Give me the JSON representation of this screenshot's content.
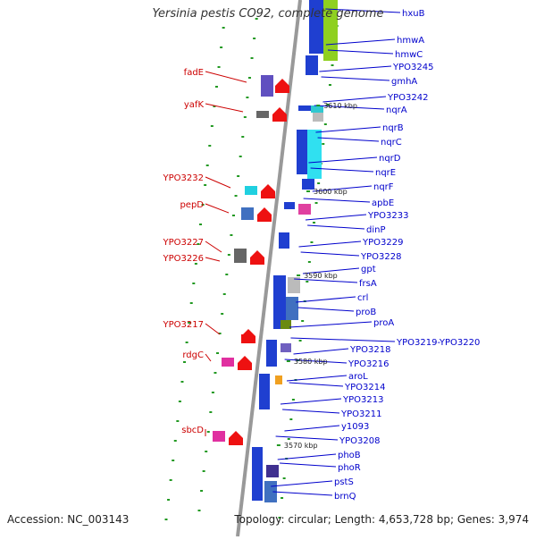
{
  "title": "Yersinia pestis CO92, complete genome",
  "footer": {
    "accession": "Accession: NC_003143",
    "topology": "Topology: circular; Length: 4,653,728 bp; Genes: 3,974"
  },
  "colors": {
    "backbone": "#888888",
    "forward_label": "#cc0000",
    "reverse_label": "#0000cc",
    "tick_label": "#222222",
    "dot": "#229922"
  },
  "ticks": [
    "3610 kbp",
    "3600 kbp",
    "3590 kbp",
    "3580 kbp",
    "3570 kbp"
  ],
  "forward_genes": [
    "fadE",
    "yafK",
    "YPO3232",
    "pepD",
    "YPO3227",
    "YPO3226",
    "YPO3217",
    "rdgC",
    "sbcD"
  ],
  "reverse_genes": [
    "hxuB",
    "hmwA",
    "hmwC",
    "YPO3245",
    "gmhA",
    "YPO3242",
    "nqrA",
    "nqrB",
    "nqrC",
    "nqrD",
    "nqrE",
    "nqrF",
    "apbE",
    "YPO3233",
    "dinP",
    "YPO3229",
    "YPO3228",
    "gpt",
    "frsA",
    "crl",
    "proB",
    "proA",
    "YPO3219-YPO3220",
    "YPO3218",
    "YPO3216",
    "aroL",
    "YPO3214",
    "YPO3213",
    "YPO3211",
    "y1093",
    "YPO3208",
    "phoB",
    "phoR",
    "pstS",
    "brnQ"
  ]
}
